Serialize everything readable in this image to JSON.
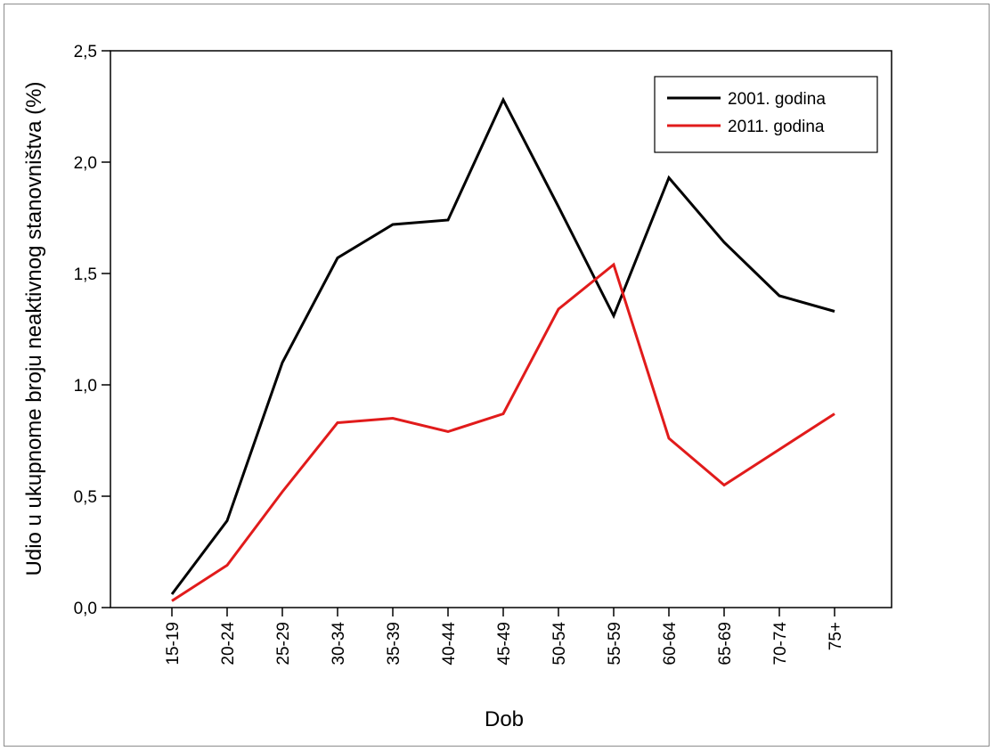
{
  "chart_data": {
    "type": "line",
    "xlabel": "Dob",
    "ylabel": "Udio u ukupnome broju neaktivnog stanovništva (%)",
    "categories": [
      "15-19",
      "20-24",
      "25-29",
      "30-34",
      "35-39",
      "40-44",
      "45-49",
      "50-54",
      "55-59",
      "60-64",
      "65-69",
      "70-74",
      "75+"
    ],
    "ylim": [
      0,
      2.5
    ],
    "yticks": [
      "0,0",
      "0,5",
      "1,0",
      "1,5",
      "2,0",
      "2,5"
    ],
    "ytick_values": [
      0,
      0.5,
      1.0,
      1.5,
      2.0,
      2.5
    ],
    "grid": false,
    "legend_position": "top-right",
    "series": [
      {
        "name": "2001. godina",
        "color": "#000000",
        "values": [
          0.06,
          0.39,
          1.1,
          1.57,
          1.72,
          1.74,
          2.28,
          1.8,
          1.31,
          1.93,
          1.64,
          1.4,
          1.33
        ]
      },
      {
        "name": "2011. godina",
        "color": "#e11b1b",
        "values": [
          0.03,
          0.19,
          0.52,
          0.83,
          0.85,
          0.79,
          0.87,
          1.34,
          1.54,
          0.76,
          0.55,
          0.71,
          0.87
        ]
      }
    ]
  }
}
